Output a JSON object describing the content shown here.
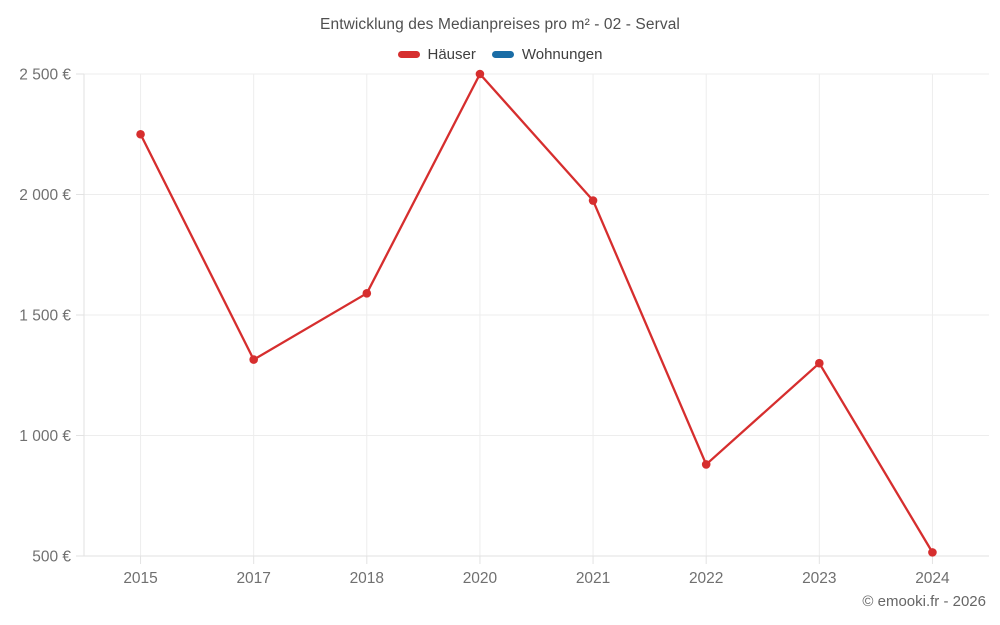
{
  "header": {
    "title": "Entwicklung des Medianpreises pro m² - 02 - Serval"
  },
  "legend": {
    "items": [
      {
        "label": "Häuser",
        "color": "#d62e2e"
      },
      {
        "label": "Wohnungen",
        "color": "#1a6da6"
      }
    ]
  },
  "footer": {
    "copyright": "© emooki.fr - 2026"
  },
  "chart_data": {
    "type": "line",
    "title": "Entwicklung des Medianpreises pro m² - 02 - Serval",
    "xlabel": "",
    "ylabel": "",
    "categories": [
      "2015",
      "2017",
      "2018",
      "2020",
      "2021",
      "2022",
      "2023",
      "2024"
    ],
    "series": [
      {
        "name": "Häuser",
        "color": "#d62e2e",
        "values": [
          2250,
          1315,
          1590,
          2500,
          1975,
          880,
          1300,
          515
        ]
      },
      {
        "name": "Wohnungen",
        "color": "#1a6da6",
        "values": []
      }
    ],
    "ylim": [
      500,
      2500
    ],
    "ytick_values": [
      500,
      1000,
      1500,
      2000,
      2500
    ],
    "ytick_labels": [
      "500 €",
      "1 000 €",
      "1 500 €",
      "2 000 €",
      "2 500 €"
    ],
    "grid": true,
    "legend_position": "top",
    "marker_radius": 4.3,
    "line_width": 2.3
  },
  "style": {
    "grid_color": "#ededed",
    "axis_color": "#e2e2e2",
    "tick_color": "#e2e2e2",
    "axis_label_color": "#707070"
  }
}
